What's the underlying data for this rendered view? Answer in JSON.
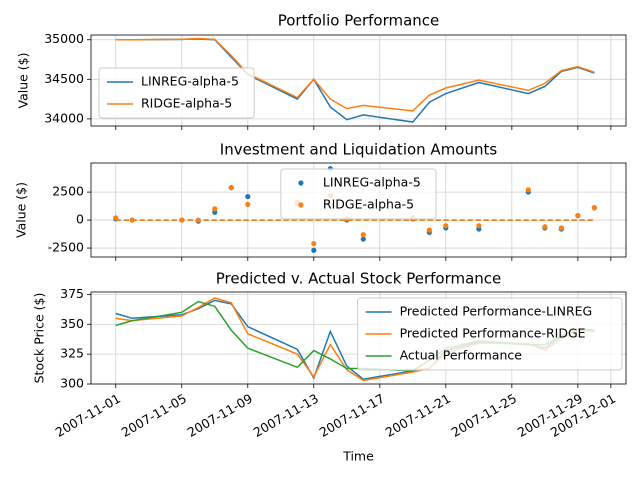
{
  "chart_data": [
    {
      "type": "line",
      "title": "Portfolio Performance",
      "ylabel": "Value ($)",
      "x": [
        "2007-11-01",
        "2007-11-02",
        "2007-11-05",
        "2007-11-06",
        "2007-11-07",
        "2007-11-08",
        "2007-11-09",
        "2007-11-12",
        "2007-11-13",
        "2007-11-14",
        "2007-11-15",
        "2007-11-16",
        "2007-11-19",
        "2007-11-20",
        "2007-11-21",
        "2007-11-23",
        "2007-11-26",
        "2007-11-27",
        "2007-11-28",
        "2007-11-29",
        "2007-11-30"
      ],
      "series": [
        {
          "name": "LINREG-alpha-5",
          "color": "#1f77b4",
          "values": [
            35000,
            35000,
            35005,
            35010,
            35000,
            34780,
            34560,
            34250,
            34500,
            34150,
            33990,
            34050,
            33960,
            34210,
            34320,
            34460,
            34320,
            34410,
            34600,
            34650,
            34580
          ]
        },
        {
          "name": "RIDGE-alpha-5",
          "color": "#ff7f0e",
          "values": [
            35000,
            35000,
            35005,
            35015,
            35005,
            34800,
            34570,
            34270,
            34500,
            34250,
            34130,
            34170,
            34100,
            34300,
            34390,
            34490,
            34360,
            34450,
            34610,
            34660,
            34590
          ]
        }
      ],
      "xlim": [
        "2007-10-30T12:00:00",
        "2007-12-01T22:00:00"
      ],
      "xticks": [
        "2007-11-01",
        "2007-11-05",
        "2007-11-09",
        "2007-11-13",
        "2007-11-17",
        "2007-11-21",
        "2007-11-25",
        "2007-11-29",
        "2007-12-01"
      ],
      "ylim": [
        33910,
        35060
      ],
      "yticks": [
        34000,
        34500,
        35000
      ],
      "grid": true,
      "legend": "lower left"
    },
    {
      "type": "scatter",
      "title": "Investment and Liquidation Amounts",
      "ylabel": "Value ($)",
      "x": [
        "2007-11-01",
        "2007-11-02",
        "2007-11-05",
        "2007-11-06",
        "2007-11-07",
        "2007-11-08",
        "2007-11-09",
        "2007-11-12",
        "2007-11-13",
        "2007-11-14",
        "2007-11-15",
        "2007-11-16",
        "2007-11-19",
        "2007-11-20",
        "2007-11-21",
        "2007-11-23",
        "2007-11-26",
        "2007-11-27",
        "2007-11-28",
        "2007-11-29",
        "2007-11-30"
      ],
      "series": [
        {
          "name": "LINREG-alpha-5",
          "color": "#1f77b4",
          "values": [
            100,
            0,
            0,
            -100,
            700,
            2900,
            2100,
            1500,
            -2700,
            4600,
            0,
            -1700,
            100,
            -1100,
            -700,
            -800,
            2500,
            -700,
            -800,
            400,
            1100
          ]
        },
        {
          "name": "RIDGE-alpha-5",
          "color": "#ff7f0e",
          "values": [
            200,
            0,
            0,
            0,
            1000,
            2900,
            1400,
            1600,
            -2100,
            2200,
            100,
            -1300,
            200,
            -900,
            -500,
            -500,
            2700,
            -600,
            -700,
            400,
            1100
          ]
        }
      ],
      "reference_line": 0,
      "xlim": [
        "2007-10-30T12:00:00",
        "2007-12-01T22:00:00"
      ],
      "xticks": [
        "2007-11-01",
        "2007-11-05",
        "2007-11-09",
        "2007-11-13",
        "2007-11-17",
        "2007-11-21",
        "2007-11-25",
        "2007-11-29",
        "2007-12-01"
      ],
      "ylim": [
        -3300,
        5100
      ],
      "yticks": [
        -2500,
        0,
        2500
      ],
      "grid": true,
      "legend": "upper center"
    },
    {
      "type": "line",
      "title": "Predicted v. Actual Stock Performance",
      "ylabel": "Stock Price ($)",
      "xlabel": "Time",
      "x": [
        "2007-11-01",
        "2007-11-02",
        "2007-11-05",
        "2007-11-06",
        "2007-11-07",
        "2007-11-08",
        "2007-11-09",
        "2007-11-12",
        "2007-11-13",
        "2007-11-14",
        "2007-11-15",
        "2007-11-16",
        "2007-11-19",
        "2007-11-20",
        "2007-11-21",
        "2007-11-23",
        "2007-11-26",
        "2007-11-27",
        "2007-11-28",
        "2007-11-29",
        "2007-11-30"
      ],
      "series": [
        {
          "name": "Predicted Performance-LINREG",
          "color": "#1f77b4",
          "values": [
            359,
            355,
            358,
            363,
            370,
            367,
            348,
            329,
            305,
            344,
            315,
            304,
            311,
            313,
            328,
            335,
            333,
            330,
            340,
            346,
            345
          ]
        },
        {
          "name": "Predicted Performance-RIDGE",
          "color": "#ff7f0e",
          "values": [
            355,
            353,
            357,
            364,
            372,
            368,
            342,
            325,
            306,
            333,
            312,
            303,
            310,
            313,
            326,
            334,
            334,
            328,
            338,
            345,
            344
          ]
        },
        {
          "name": "Actual Performance",
          "color": "#2ca02c",
          "values": [
            349,
            353,
            360,
            369,
            365,
            345,
            330,
            314,
            328,
            321,
            313,
            313,
            311,
            320,
            330,
            336,
            333,
            333,
            340,
            346,
            344
          ]
        }
      ],
      "xlim": [
        "2007-10-30T12:00:00",
        "2007-12-01T22:00:00"
      ],
      "xticks": [
        "2007-11-01",
        "2007-11-05",
        "2007-11-09",
        "2007-11-13",
        "2007-11-17",
        "2007-11-21",
        "2007-11-25",
        "2007-11-29",
        "2007-12-01"
      ],
      "ylim": [
        300,
        377
      ],
      "yticks": [
        300,
        325,
        350,
        375
      ],
      "grid": true,
      "legend": "upper right"
    }
  ]
}
